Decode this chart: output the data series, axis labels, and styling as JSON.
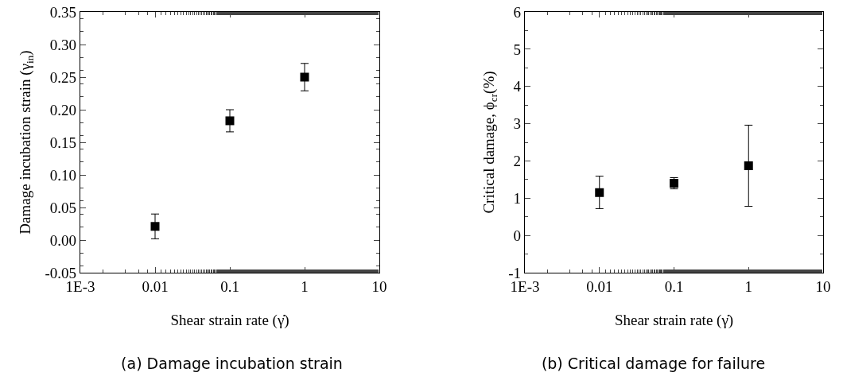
{
  "chart_data": [
    {
      "type": "scatter",
      "title": "(a) Damage incubation strain",
      "xlabel": "Shear strain rate (γ̇)",
      "ylabel": "Damage incubation strain (γ$_{in}$)",
      "x": [
        0.01,
        0.1,
        1
      ],
      "values": [
        0.021,
        0.183,
        0.25
      ],
      "errors": [
        [
          0.002,
          0.04
        ],
        [
          0.166,
          0.2
        ],
        [
          0.229,
          0.271
        ]
      ],
      "color": "#000000",
      "marker": "square",
      "log": "x",
      "xlim": [
        0.001,
        10
      ],
      "xticks": [
        {
          "value": 0.001,
          "label": "1E-3"
        },
        0.01,
        0.1,
        1,
        10
      ],
      "ylim": [
        -0.05,
        0.35
      ],
      "yticks": [
        {
          "value": -0.05,
          "label": "-0.05"
        },
        {
          "value": 0,
          "label": "0.00"
        },
        {
          "value": 0.05,
          "label": "0.05"
        },
        {
          "value": 0.1,
          "label": "0.10"
        },
        {
          "value": 0.15,
          "label": "0.15"
        },
        {
          "value": 0.2,
          "label": "0.20"
        },
        {
          "value": 0.25,
          "label": "0.25"
        },
        {
          "value": 0.3,
          "label": "0.30"
        },
        {
          "value": 0.35,
          "label": "0.35"
        }
      ]
    },
    {
      "type": "scatter",
      "title": "(b) Critical damage for failure",
      "xlabel": "Shear strain rate (γ̇)",
      "ylabel": "Critical damage, ϕ$_{cr}$(%)",
      "x": [
        0.01,
        0.1,
        1
      ],
      "values": [
        1.15,
        1.4,
        1.87
      ],
      "errors": [
        [
          0.72,
          1.59
        ],
        [
          1.25,
          1.55
        ],
        [
          0.78,
          2.96
        ]
      ],
      "color": "#000000",
      "marker": "square",
      "log": "x",
      "xlim": [
        0.001,
        10
      ],
      "xticks": [
        {
          "value": 0.001,
          "label": "1E-3"
        },
        0.01,
        0.1,
        1,
        10
      ],
      "ylim": [
        -1,
        6
      ],
      "yticks": [
        -1,
        0,
        1,
        2,
        3,
        4,
        5,
        6
      ]
    }
  ]
}
